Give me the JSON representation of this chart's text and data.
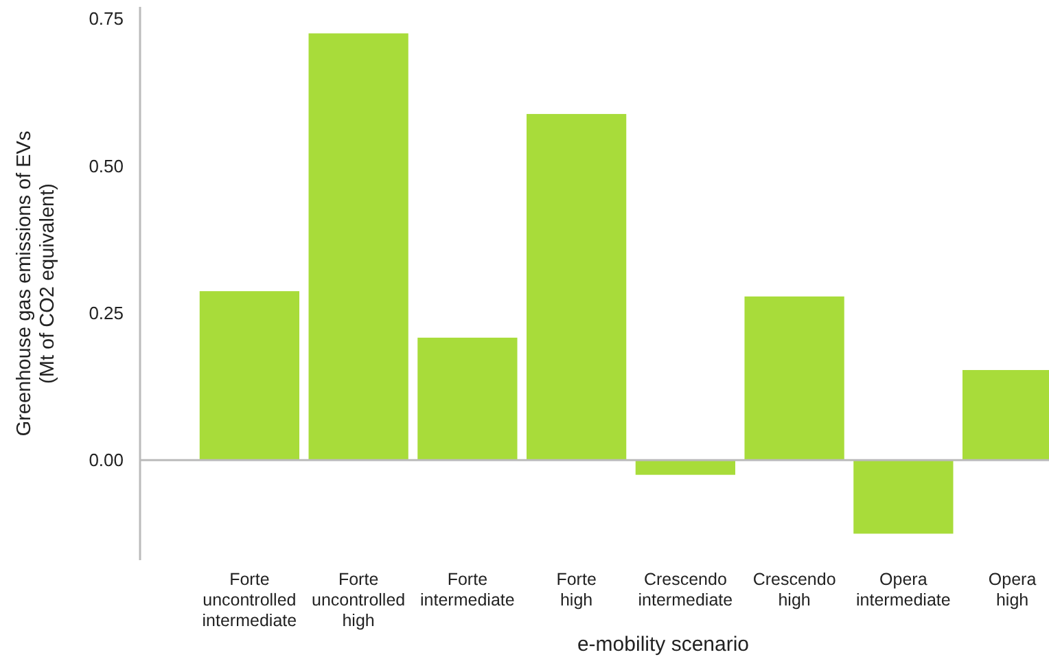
{
  "chart_data": {
    "type": "bar",
    "xlabel": "e-mobility scenario",
    "ylabel": "Greenhouse gas emissions of EVs\n(Mt of CO2 equivalent)",
    "categories": [
      "Forte\nuncontrolled\nintermediate",
      "Forte\nuncontrolled\nhigh",
      "Forte\nintermediate",
      "Forte\nhigh",
      "Crescendo\nintermediate",
      "Crescendo\nhigh",
      "Opera\nintermediate",
      "Opera\nhigh"
    ],
    "values": [
      0.287,
      0.725,
      0.208,
      0.588,
      -0.025,
      0.278,
      -0.125,
      0.153
    ],
    "color": "#a8dc3a",
    "ylim": [
      -0.17,
      0.77
    ],
    "yticks": [
      {
        "value": 0,
        "label": "0.00"
      },
      0.25,
      {
        "value": 0.5,
        "label": "0.50"
      },
      0.75
    ],
    "ref_lines": [
      {
        "axis": "y",
        "value": 0,
        "color": "#bbbbbb"
      }
    ]
  }
}
